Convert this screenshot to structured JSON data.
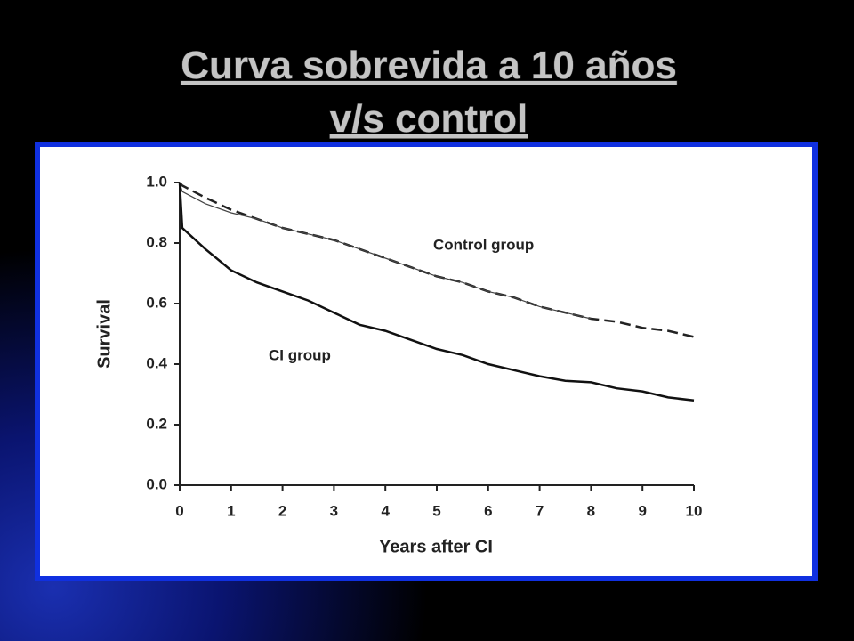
{
  "chart_data": {
    "type": "line",
    "title": [
      "Curva sobrevida a 10 años",
      "v/s control"
    ],
    "x_label": "Years after CI",
    "y_label": "Survival",
    "x": [
      0,
      0.05,
      0.5,
      1,
      1.5,
      2,
      2.5,
      3,
      3.5,
      4,
      4.5,
      5,
      5.5,
      6,
      6.5,
      7,
      7.5,
      8,
      8.5,
      9,
      9.5,
      10
    ],
    "series": [
      {
        "name": "Control group",
        "color": "#222222",
        "dash": true,
        "values": [
          1.0,
          0.99,
          0.95,
          0.91,
          0.88,
          0.85,
          0.83,
          0.81,
          0.78,
          0.75,
          0.72,
          0.69,
          0.67,
          0.64,
          0.62,
          0.59,
          0.57,
          0.55,
          0.54,
          0.52,
          0.51,
          0.49
        ]
      },
      {
        "color": "#444444",
        "dash": false,
        "values": [
          1.0,
          0.97,
          0.93,
          0.9,
          0.88,
          0.85,
          0.83,
          0.81,
          0.78,
          0.75,
          0.72,
          0.69,
          0.67,
          0.64,
          0.62,
          0.59,
          0.57,
          0.55,
          null,
          null,
          null,
          null
        ]
      },
      {
        "name": "CI group",
        "color": "#111111",
        "dash": false,
        "values": [
          1.0,
          0.85,
          0.78,
          0.71,
          0.67,
          0.64,
          0.61,
          0.57,
          0.53,
          0.51,
          0.48,
          0.45,
          0.43,
          0.4,
          0.38,
          0.36,
          0.345,
          0.34,
          0.32,
          0.31,
          0.29,
          0.28
        ]
      }
    ],
    "xlim": [
      0,
      10
    ],
    "xticks": [
      0,
      1,
      2,
      3,
      4,
      5,
      6,
      7,
      8,
      9,
      10
    ],
    "ylim": [
      0,
      1
    ],
    "yticks": [
      {
        "value": 0,
        "label": "0.0"
      },
      {
        "value": 0.2,
        "label": "0.2"
      },
      {
        "value": 0.4,
        "label": "0.4"
      },
      {
        "value": 0.6,
        "label": "0.6"
      },
      {
        "value": 0.8,
        "label": "0.8"
      },
      {
        "value": 1,
        "label": "1.0"
      }
    ],
    "grid": false
  }
}
